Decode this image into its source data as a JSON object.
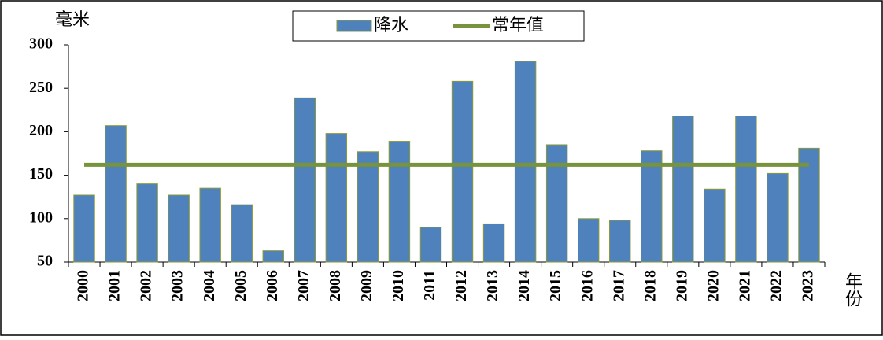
{
  "chart_data": {
    "type": "bar",
    "y_label": "毫米",
    "x_label": "年份",
    "categories": [
      "2000",
      "2001",
      "2002",
      "2003",
      "2004",
      "2005",
      "2006",
      "2007",
      "2008",
      "2009",
      "2010",
      "2011",
      "2012",
      "2013",
      "2014",
      "2015",
      "2016",
      "2017",
      "2018",
      "2019",
      "2020",
      "2021",
      "2022",
      "2023"
    ],
    "series": [
      {
        "name": "降水",
        "type": "bar",
        "color": "#4f81bd",
        "values": [
          127,
          207,
          140,
          127,
          135,
          116,
          63,
          239,
          198,
          177,
          189,
          90,
          258,
          94,
          281,
          185,
          100,
          98,
          178,
          218,
          134,
          218,
          152,
          181
        ]
      },
      {
        "name": "常年值",
        "type": "line",
        "color": "#77933c",
        "values": [
          162,
          162,
          162,
          162,
          162,
          162,
          162,
          162,
          162,
          162,
          162,
          162,
          162,
          162,
          162,
          162,
          162,
          162,
          162,
          162,
          162,
          162,
          162,
          162
        ]
      }
    ],
    "ylim": [
      50,
      300
    ],
    "yticks": [
      50,
      100,
      150,
      200,
      250,
      300
    ],
    "legend": "top"
  }
}
